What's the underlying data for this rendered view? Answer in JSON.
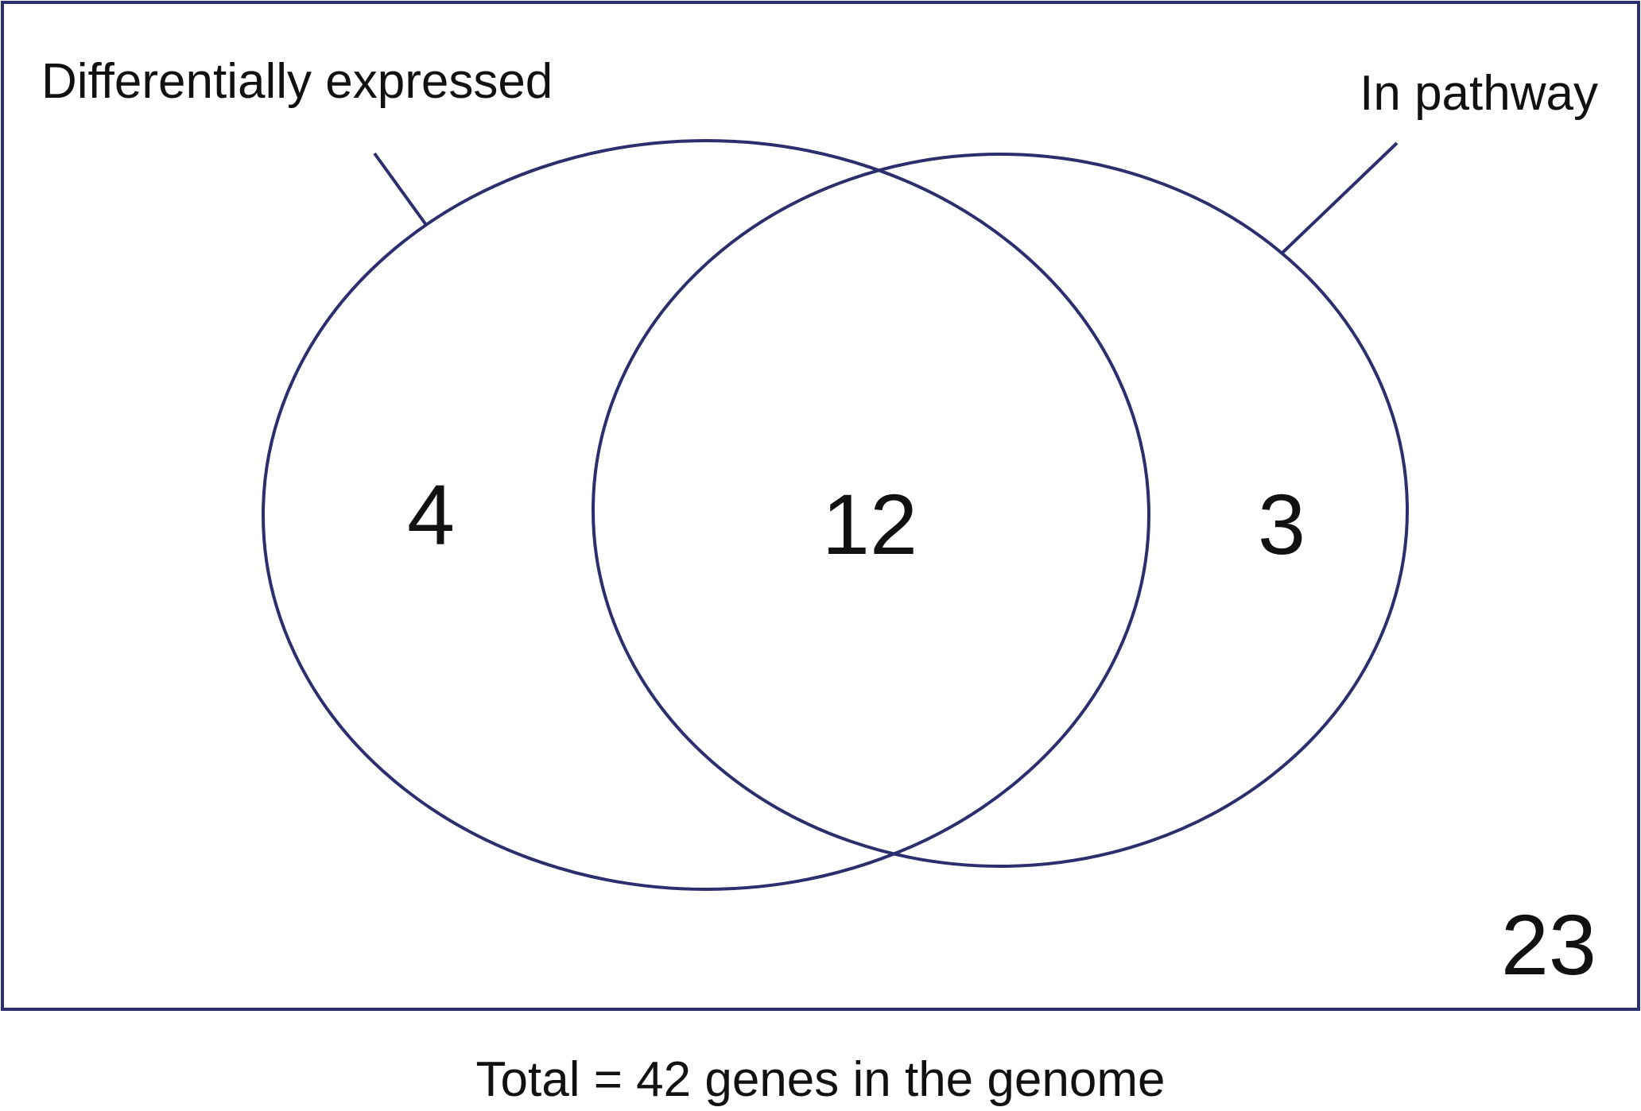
{
  "diagram": {
    "sets": [
      {
        "id": "de",
        "label": "Differentially expressed"
      },
      {
        "id": "pathway",
        "label": "In pathway"
      }
    ],
    "regions": {
      "de_only": "4",
      "intersection": "12",
      "pathway_only": "3",
      "outside": "23"
    },
    "caption": "Total = 42 genes in the genome"
  },
  "colors": {
    "outline": "#2b2f6e",
    "text": "#111111"
  }
}
